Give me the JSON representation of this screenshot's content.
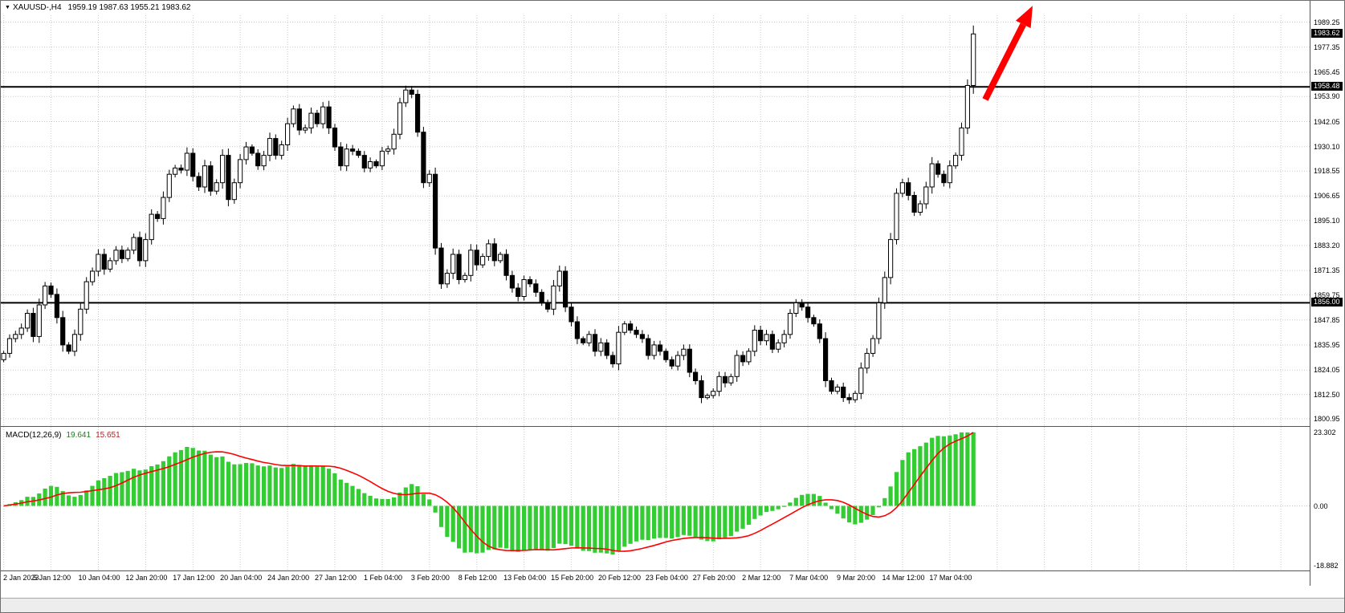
{
  "window": {
    "symbol_marker": "▼",
    "title": "XAUUSD-,H4",
    "ohlc": "1959.19 1987.63 1955.21 1983.62"
  },
  "chart_data": {
    "type": "candlestick",
    "instrument": "XAUUSD",
    "timeframe": "H4",
    "x_labels": [
      "2 Jan 2023",
      "5 Jan 12:00",
      "10 Jan 04:00",
      "12 Jan 20:00",
      "17 Jan 12:00",
      "20 Jan 04:00",
      "24 Jan 20:00",
      "27 Jan 12:00",
      "1 Feb 04:00",
      "3 Feb 20:00",
      "8 Feb 12:00",
      "13 Feb 04:00",
      "15 Feb 20:00",
      "20 Feb 12:00",
      "23 Feb 04:00",
      "27 Feb 20:00",
      "2 Mar 12:00",
      "7 Mar 04:00",
      "9 Mar 20:00",
      "14 Mar 12:00",
      "17 Mar 04:00"
    ],
    "price_axis": {
      "min": 1797.5,
      "max": 1992.5,
      "labels": [
        "1989.25",
        "1977.35",
        "1965.45",
        "1953.90",
        "1942.05",
        "1930.10",
        "1918.55",
        "1906.65",
        "1895.10",
        "1883.20",
        "1871.35",
        "1859.75",
        "1847.85",
        "1835.95",
        "1824.05",
        "1812.50",
        "1800.95"
      ],
      "boxed": [
        {
          "text": "1983.62",
          "role": "current-price"
        },
        {
          "text": "1958.48",
          "role": "upper-level"
        },
        {
          "text": "1856.00",
          "role": "lower-level"
        }
      ]
    },
    "hlines": [
      1958.48,
      1856.0
    ],
    "closes": [
      1832,
      1839,
      1841,
      1844,
      1851,
      1840,
      1855,
      1864,
      1860,
      1849,
      1836,
      1833,
      1841,
      1853,
      1866,
      1871,
      1879,
      1872,
      1876,
      1881,
      1877,
      1881,
      1887,
      1876,
      1886,
      1898,
      1896,
      1906,
      1917,
      1920,
      1919,
      1927,
      1916,
      1911,
      1921,
      1909,
      1913,
      1926,
      1905,
      1913,
      1924,
      1930,
      1927,
      1921,
      1926,
      1934,
      1926,
      1931,
      1941,
      1948,
      1938,
      1939,
      1946,
      1941,
      1949,
      1939,
      1930,
      1921,
      1929,
      1928,
      1926,
      1920,
      1923,
      1921,
      1928,
      1929,
      1936,
      1951,
      1957,
      1955,
      1937,
      1913,
      1917,
      1882,
      1865,
      1870,
      1879,
      1867,
      1869,
      1881,
      1874,
      1878,
      1884,
      1876,
      1879,
      1869,
      1863,
      1859,
      1867,
      1865,
      1861,
      1856,
      1853,
      1864,
      1871,
      1854,
      1847,
      1839,
      1837,
      1841,
      1833,
      1837,
      1831,
      1827,
      1842,
      1846,
      1843,
      1841,
      1839,
      1831,
      1836,
      1833,
      1829,
      1826,
      1831,
      1834,
      1823,
      1819,
      1811,
      1812,
      1814,
      1821,
      1818,
      1821,
      1831,
      1828,
      1833,
      1843,
      1838,
      1841,
      1834,
      1837,
      1841,
      1851,
      1856,
      1854,
      1849,
      1846,
      1839,
      1819,
      1814,
      1816,
      1811,
      1810,
      1813,
      1825,
      1832,
      1839,
      1856,
      1868,
      1886,
      1908,
      1913,
      1907,
      1899,
      1903,
      1911,
      1922,
      1917,
      1913,
      1921,
      1926,
      1939,
      1959.19,
      1983.62
    ],
    "last_bar": {
      "open": 1959.19,
      "high": 1987.63,
      "low": 1955.21,
      "close": 1983.62
    },
    "macd": {
      "label": "MACD(12,26,9)",
      "main_value": "19.641",
      "signal_value": "15.651",
      "scale_max": 23.302,
      "scale_min": -18.882,
      "scale_labels": [
        "23.302",
        "0.00",
        "-18.882"
      ]
    },
    "annotation_arrow": {
      "from": {
        "bar": 166,
        "price": 1952.5
      },
      "to": {
        "bar": 174,
        "price": 1997.0
      }
    }
  },
  "colors": {
    "bull_body": "#ffffff",
    "bear_body": "#000000",
    "candle_outline": "#000000",
    "grid": "#c9c9c9",
    "hline": "#000000",
    "macd_histogram": "#33cc33",
    "macd_signal": "#ff0000",
    "arrow": "#ff0000",
    "axis_box_bg": "#000000",
    "axis_box_text": "#ffffff"
  }
}
